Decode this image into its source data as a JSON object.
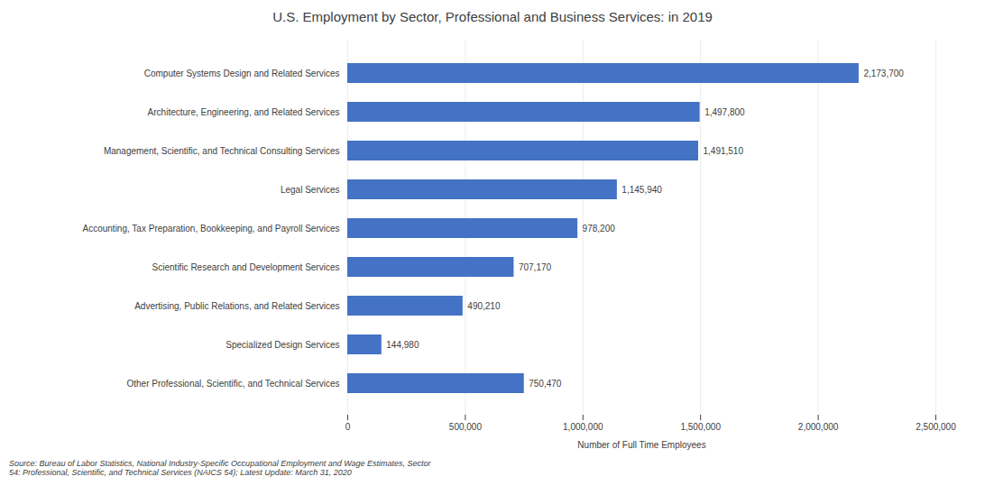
{
  "chart_data": {
    "type": "bar",
    "orientation": "horizontal",
    "title": "U.S. Employment by Sector, Professional and Business Services: in 2019",
    "categories": [
      "Other Professional, Scientific, and Technical Services",
      "Specialized Design Services",
      "Advertising, Public Relations, and Related Services",
      "Scientific Research and Development Services",
      "Accounting, Tax Preparation, Bookkeeping, and Payroll Services",
      "Legal Services",
      "Management, Scientific, and Technical Consulting Services",
      "Architecture, Engineering, and Related Services",
      "Computer Systems Design and Related Services"
    ],
    "values": [
      750470,
      144980,
      490210,
      707170,
      978200,
      1145940,
      1491510,
      1497800,
      2173700
    ],
    "value_labels": [
      "750,470",
      "144,980",
      "490,210",
      "707,170",
      "978,200",
      "1,145,940",
      "1,491,510",
      "1,497,800",
      "2,173,700"
    ],
    "data_labels": true,
    "color": "#4472C4",
    "xlabel": "Number of Full Time Employees",
    "xlim": [
      0,
      2500000
    ],
    "xticks": [
      0,
      {
        "value": 500000,
        "label": "500,000"
      },
      {
        "value": 1000000,
        "label": "1,000,000"
      },
      {
        "value": 1500000,
        "label": "1,500,000"
      },
      {
        "value": 2000000,
        "label": "2,000,000"
      },
      {
        "value": 2500000,
        "label": "2,500,000"
      }
    ],
    "grid": true,
    "caption": "Source: Bureau of Labor Statistics, National Industry-Specific Occupational Employment and Wage Estimates, Sector\n54: Professional, Scientific, and Technical Services (NAICS 54); Latest Update: March 31, 2020"
  }
}
